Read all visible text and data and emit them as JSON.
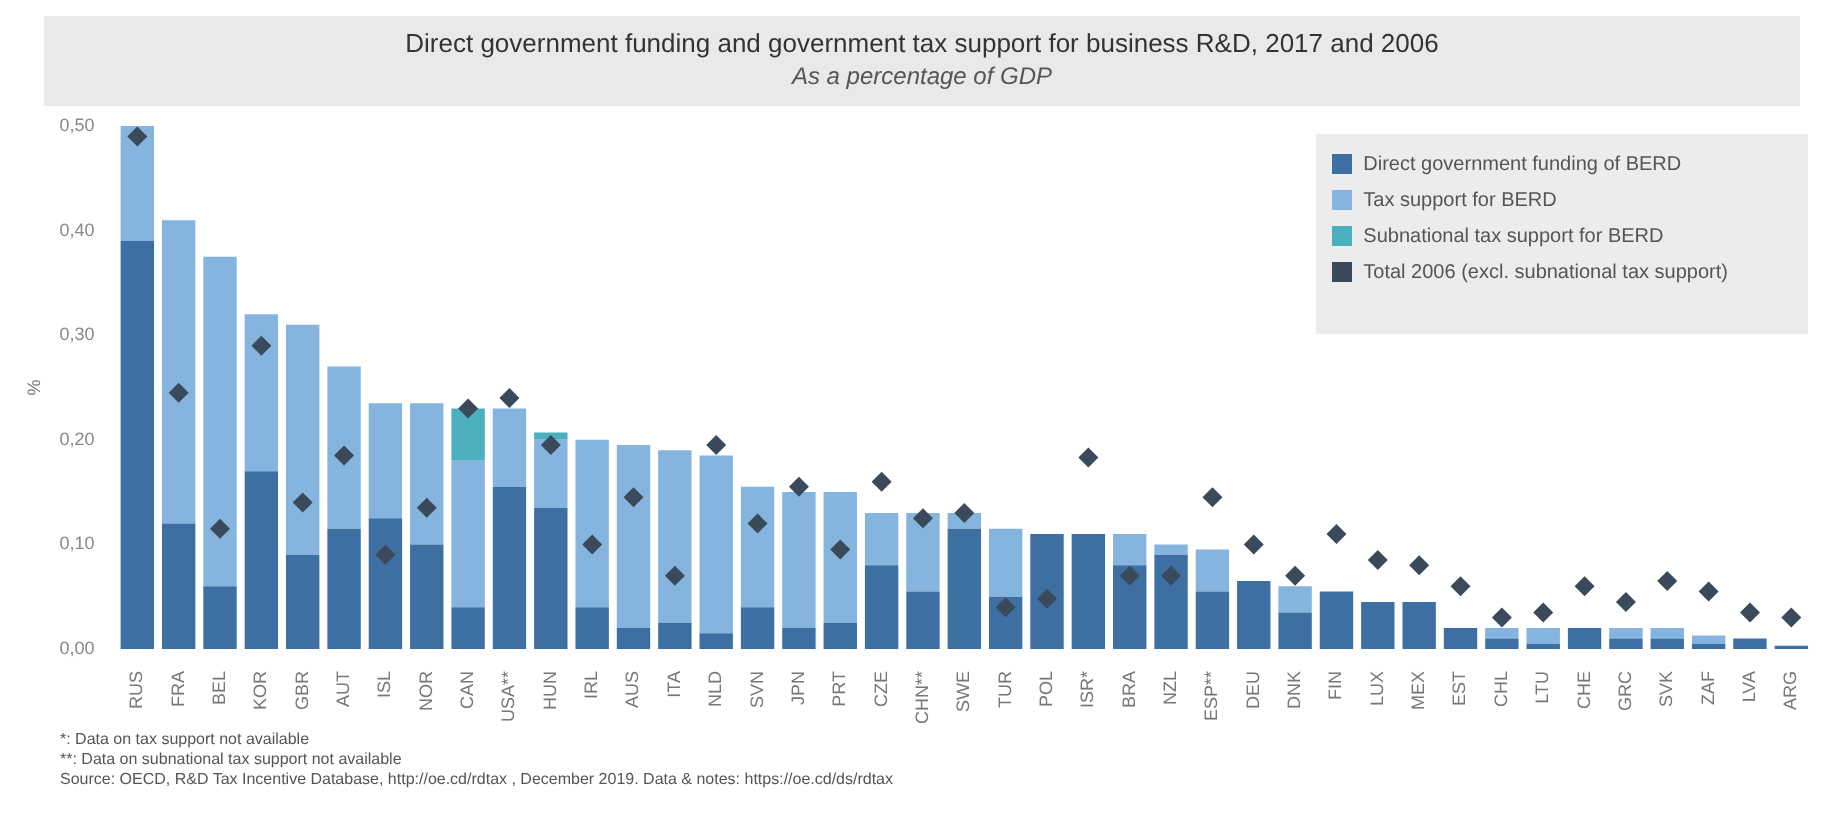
{
  "chart_data": {
    "type": "bar",
    "title": "Direct government funding and government tax support for business R&D, 2017 and 2006",
    "subtitle": "As a percentage of GDP",
    "ylabel": "%",
    "categories": [
      "RUS",
      "FRA",
      "BEL",
      "KOR",
      "GBR",
      "AUT",
      "ISL",
      "NOR",
      "CAN",
      "USA**",
      "HUN",
      "IRL",
      "AUS",
      "ITA",
      "NLD",
      "SVN",
      "JPN",
      "PRT",
      "CZE",
      "CHN**",
      "SWE",
      "TUR",
      "POL",
      "ISR*",
      "BRA",
      "NZL",
      "ESP**",
      "DEU",
      "DNK",
      "FIN",
      "LUX",
      "MEX",
      "EST",
      "CHL",
      "LTU",
      "CHE",
      "GRC",
      "SVK",
      "ZAF",
      "LVA",
      "ARG"
    ],
    "stacked": true,
    "series": [
      {
        "name": "Direct government funding of BERD",
        "color": "#3d6fa3",
        "values": [
          0.39,
          0.12,
          0.06,
          0.17,
          0.09,
          0.115,
          0.125,
          0.1,
          0.04,
          0.155,
          0.135,
          0.04,
          0.02,
          0.025,
          0.015,
          0.04,
          0.02,
          0.025,
          0.08,
          0.055,
          0.115,
          0.05,
          0.11,
          0.11,
          0.08,
          0.09,
          0.055,
          0.065,
          0.035,
          0.055,
          0.045,
          0.045,
          0.02,
          0.01,
          0.005,
          0.02,
          0.01,
          0.01,
          0.005,
          0.01,
          0.003
        ]
      },
      {
        "name": "Tax support for BERD",
        "color": "#85b4de",
        "values": [
          0.11,
          0.29,
          0.315,
          0.15,
          0.22,
          0.155,
          0.11,
          0.135,
          0.14,
          0.075,
          0.065,
          0.16,
          0.175,
          0.165,
          0.17,
          0.115,
          0.13,
          0.125,
          0.05,
          0.075,
          0.015,
          0.065,
          0,
          null,
          0.03,
          0.01,
          0.04,
          0,
          0.025,
          0,
          0,
          0,
          0,
          0.01,
          0.015,
          0,
          0.01,
          0.01,
          0.008,
          0,
          0
        ]
      },
      {
        "name": "Subnational tax support for BERD",
        "color": "#4bb0bd",
        "values": [
          null,
          null,
          null,
          null,
          null,
          null,
          null,
          null,
          0.05,
          null,
          0.007,
          null,
          null,
          null,
          null,
          null,
          null,
          null,
          null,
          null,
          null,
          null,
          null,
          null,
          null,
          null,
          null,
          null,
          null,
          null,
          null,
          null,
          null,
          null,
          null,
          null,
          null,
          null,
          null,
          null,
          null
        ]
      },
      {
        "name": "Total 2006 (excl. subnational tax support)",
        "type": "scatter",
        "marker": "diamond",
        "color": "#3b4a5a",
        "x": [
          "RUS",
          "FRA",
          "BEL",
          "KOR",
          "GBR",
          "AUT",
          "ISL",
          "NOR",
          "CAN",
          "USA**",
          "HUN",
          "IRL",
          "AUS",
          "ITA",
          "NLD",
          "SVN",
          "JPN",
          "PRT",
          "CZE",
          "CHN**",
          "SWE",
          "TUR",
          "POL",
          "ISR*",
          "BRA",
          "NZL",
          "ESP**",
          "DEU",
          "DNK",
          "FIN",
          "LUX",
          "MEX",
          "EST",
          "CHL",
          "LTU",
          "CHE",
          "GRC",
          "SVK",
          "ZAF",
          "LVA",
          "ARG"
        ],
        "values": [
          0.49,
          0.245,
          0.115,
          0.29,
          0.14,
          0.185,
          0.09,
          0.135,
          0.23,
          0.24,
          0.195,
          0.1,
          0.145,
          0.07,
          0.195,
          0.12,
          0.155,
          0.095,
          0.16,
          0.125,
          0.13,
          0.04,
          0.048,
          0.183,
          0.07,
          0.07,
          0.145,
          0.1,
          0.07,
          0.11,
          0.085,
          0.08,
          0.06,
          0.03,
          0.035,
          0.06,
          0.045,
          0.065,
          0.055,
          0.035,
          0.03
        ]
      }
    ],
    "ylim": [
      0,
      0.5
    ],
    "yticks": [
      {
        "value": 0,
        "label": "0,00"
      },
      {
        "value": 0.1,
        "label": "0,10"
      },
      {
        "value": 0.2,
        "label": "0,20"
      },
      {
        "value": 0.3,
        "label": "0,30"
      },
      {
        "value": 0.4,
        "label": "0,40"
      },
      {
        "value": 0.5,
        "label": "0,50"
      }
    ],
    "grid": false,
    "legend": "top right",
    "annotations": [
      "*: Data on tax support not available",
      "**: Data on subnational tax support not available",
      "Source: OECD, R&D Tax Incentive Database, http://oe.cd/rdtax , December 2019. Data & notes: https://oe.cd/ds/rdtax"
    ]
  }
}
